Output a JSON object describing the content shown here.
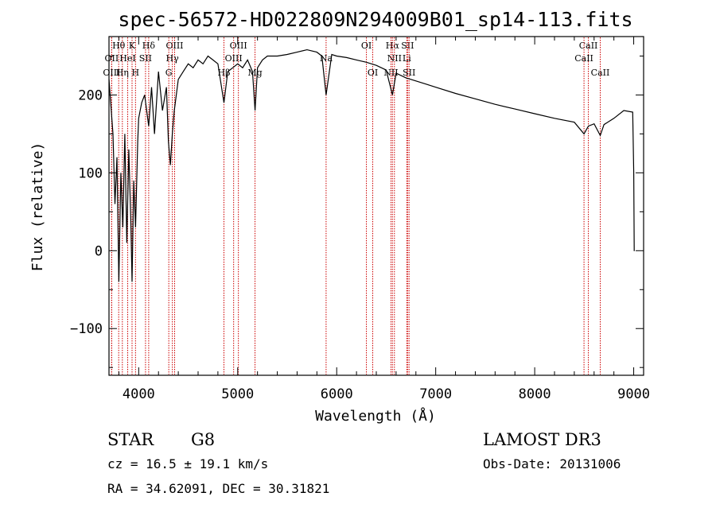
{
  "chart_data": {
    "type": "line",
    "title": "spec-56572-HD022809N294009B01_sp14-113.fits",
    "xlabel": "Wavelength (Å)",
    "ylabel": "Flux (relative)",
    "xlim": [
      3700,
      9100
    ],
    "ylim": [
      -160,
      275
    ],
    "x_ticks": [
      4000,
      5000,
      6000,
      7000,
      8000,
      9000
    ],
    "x_tick_labels": [
      "4000",
      "5000",
      "6000",
      "7000",
      "8000",
      "9000"
    ],
    "y_ticks": [
      -100,
      0,
      100,
      200
    ],
    "y_tick_labels": [
      "−100",
      "0",
      "100",
      "200"
    ],
    "line_color": "#000000",
    "marker_color": "#cc0000",
    "series": [
      {
        "name": "flux",
        "x": [
          3700,
          3740,
          3760,
          3780,
          3800,
          3820,
          3840,
          3860,
          3880,
          3900,
          3920,
          3933,
          3950,
          3968,
          3990,
          4000,
          4030,
          4060,
          4101,
          4130,
          4160,
          4200,
          4240,
          4280,
          4300,
          4320,
          4340,
          4360,
          4400,
          4450,
          4500,
          4550,
          4600,
          4650,
          4700,
          4750,
          4800,
          4861,
          4900,
          4950,
          5000,
          5050,
          5100,
          5150,
          5175,
          5200,
          5250,
          5300,
          5400,
          5500,
          5600,
          5700,
          5800,
          5850,
          5893,
          5950,
          6000,
          6100,
          6200,
          6300,
          6400,
          6500,
          6563,
          6600,
          6700,
          6800,
          6900,
          7000,
          7200,
          7400,
          7600,
          7800,
          8000,
          8200,
          8400,
          8498,
          8542,
          8600,
          8662,
          8700,
          8800,
          8900,
          8990,
          9000,
          9005,
          9010
        ],
        "y": [
          220,
          150,
          60,
          120,
          -40,
          100,
          30,
          150,
          10,
          130,
          40,
          -40,
          90,
          30,
          140,
          170,
          190,
          200,
          160,
          210,
          150,
          230,
          180,
          210,
          140,
          110,
          150,
          180,
          220,
          230,
          240,
          235,
          245,
          240,
          250,
          245,
          240,
          190,
          230,
          235,
          240,
          235,
          245,
          230,
          180,
          235,
          245,
          250,
          250,
          252,
          255,
          258,
          255,
          250,
          200,
          252,
          250,
          248,
          245,
          242,
          238,
          232,
          200,
          228,
          222,
          218,
          214,
          210,
          202,
          195,
          188,
          182,
          176,
          170,
          165,
          150,
          160,
          163,
          148,
          162,
          170,
          180,
          178,
          100,
          0,
          0
        ]
      }
    ],
    "spectral_lines": [
      {
        "label": "Hθ",
        "wavelength": 3798,
        "row": 1
      },
      {
        "label": "OII",
        "wavelength": 3727,
        "row": 2
      },
      {
        "label": "OIII",
        "wavelength": 3727,
        "row": 3
      },
      {
        "label": "K",
        "wavelength": 3933,
        "row": 1
      },
      {
        "label": "HeI",
        "wavelength": 3889,
        "row": 2
      },
      {
        "label": "Hη",
        "wavelength": 3835,
        "row": 3
      },
      {
        "label": "Hδ",
        "wavelength": 4101,
        "row": 1
      },
      {
        "label": "SII",
        "wavelength": 4069,
        "row": 2
      },
      {
        "label": "H",
        "wavelength": 3968,
        "row": 3
      },
      {
        "label": "OIII",
        "wavelength": 4363,
        "row": 1
      },
      {
        "label": "Hγ",
        "wavelength": 4340,
        "row": 2
      },
      {
        "label": "G",
        "wavelength": 4304,
        "row": 3
      },
      {
        "label": "OIII",
        "wavelength": 5007,
        "row": 1
      },
      {
        "label": "OIII",
        "wavelength": 4959,
        "row": 2
      },
      {
        "label": "Hβ",
        "wavelength": 4861,
        "row": 3
      },
      {
        "label": "Mg",
        "wavelength": 5175,
        "row": 3
      },
      {
        "label": "Na",
        "wavelength": 5893,
        "row": 2
      },
      {
        "label": "OI",
        "wavelength": 6300,
        "row": 1
      },
      {
        "label": "OI",
        "wavelength": 6364,
        "row": 3
      },
      {
        "label": "Hα",
        "wavelength": 6563,
        "row": 1
      },
      {
        "label": "SII",
        "wavelength": 6716,
        "row": 1
      },
      {
        "label": "NII",
        "wavelength": 6583,
        "row": 2
      },
      {
        "label": "Li",
        "wavelength": 6708,
        "row": 2
      },
      {
        "label": "NII",
        "wavelength": 6548,
        "row": 3
      },
      {
        "label": "SII",
        "wavelength": 6731,
        "row": 3
      },
      {
        "label": "CaII",
        "wavelength": 8542,
        "row": 1
      },
      {
        "label": "CaII",
        "wavelength": 8498,
        "row": 2
      },
      {
        "label": "CaII",
        "wavelength": 8662,
        "row": 3
      }
    ]
  },
  "info": {
    "object_class": "STAR",
    "subclass": "G8",
    "redshift": "cz =  16.5 ± 19.1 km/s",
    "coords": "RA =  34.62091, DEC =  30.31821",
    "survey": "LAMOST DR3",
    "obs_date": "Obs-Date: 20131006"
  }
}
